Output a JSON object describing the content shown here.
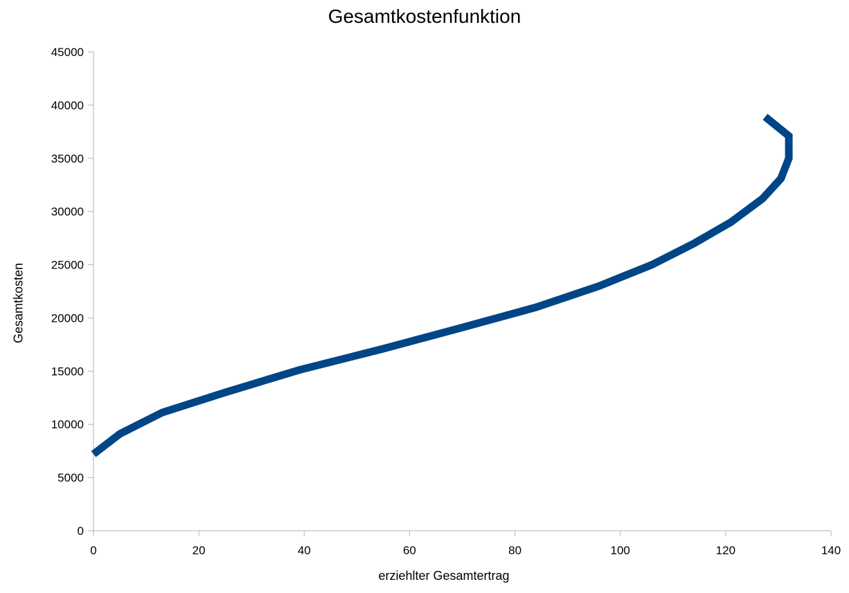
{
  "chart_data": {
    "type": "line",
    "title": "Gesamtkostenfunktion",
    "xlabel": "erziehlter Gesamtertrag",
    "ylabel": "Gesamtkosten",
    "xlim": [
      0,
      140
    ],
    "ylim": [
      0,
      45000
    ],
    "x_ticks": [
      "0",
      "20",
      "40",
      "60",
      "80",
      "100",
      "120",
      "140"
    ],
    "y_ticks": [
      "0",
      "5000",
      "10000",
      "15000",
      "20000",
      "25000",
      "30000",
      "35000",
      "40000",
      "45000"
    ],
    "grid": false,
    "legend": "none",
    "series": [
      {
        "color": "#004586",
        "x": [
          0,
          5,
          13,
          25,
          39,
          55,
          70,
          84,
          96,
          106,
          114,
          121,
          127,
          130.5,
          132,
          132,
          127.5
        ],
        "y": [
          7200,
          9100,
          11100,
          13000,
          15100,
          17100,
          19100,
          21000,
          23000,
          25000,
          27000,
          29000,
          31200,
          33100,
          35000,
          37100,
          38900
        ]
      }
    ]
  }
}
